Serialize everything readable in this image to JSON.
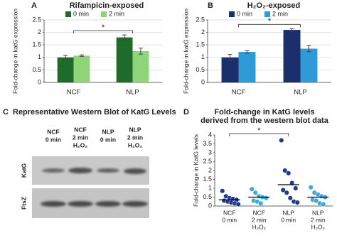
{
  "chart_data": [
    {
      "type": "bar",
      "panel_label": "A",
      "title": "Rifampicin-exposed",
      "y_label": "Fold-change in katG expression",
      "categories": [
        "NCF",
        "NLP"
      ],
      "series": [
        {
          "name": "0 min",
          "color": "#1e6b2a",
          "values": [
            1.0,
            1.8
          ],
          "errors": [
            0.08,
            0.1
          ]
        },
        {
          "name": "2 min",
          "color": "#90d47a",
          "values": [
            1.07,
            1.25
          ],
          "errors": [
            0.03,
            0.12
          ]
        }
      ],
      "ylim": [
        0,
        2.5
      ],
      "yticks": [
        0,
        0.5,
        1,
        1.5,
        2,
        2.5
      ],
      "grid": true,
      "legend": "top",
      "annotation": "*",
      "bracket": [
        0,
        1
      ]
    },
    {
      "type": "bar",
      "panel_label": "B",
      "title": "H₂O₂-exposed",
      "y_label": "Fold-change in katG expression",
      "categories": [
        "NCF",
        "NLP"
      ],
      "series": [
        {
          "name": "0 min",
          "color": "#1a2f6b",
          "values": [
            1.0,
            2.1
          ],
          "errors": [
            0.12,
            0.05
          ]
        },
        {
          "name": "2 min",
          "color": "#2e9bd6",
          "values": [
            1.22,
            1.35
          ],
          "errors": [
            0.05,
            0.12
          ]
        }
      ],
      "ylim": [
        0,
        2.5
      ],
      "yticks": [
        0,
        0.5,
        1,
        1.5,
        2,
        2.5
      ],
      "grid": true,
      "legend": "top",
      "annotation": "*",
      "bracket": [
        0,
        1
      ]
    },
    {
      "type": "strip",
      "panel_label": "D",
      "title": [
        "Fold-change in KatG levels",
        "derived from the western blot data"
      ],
      "y_label": "Fold-change in KatG levels",
      "categories": [
        [
          "NCF",
          "0 min"
        ],
        [
          "NCF",
          "2 min",
          "H₂O₂"
        ],
        [
          "NLP",
          "0 min"
        ],
        [
          "NLP",
          "2 min",
          "H₂O₂"
        ]
      ],
      "groups": [
        {
          "color": "#1f3b8f",
          "values": [
            0.85,
            0.55,
            0.45,
            0.4,
            0.35,
            0.3,
            0.25,
            0.2,
            0.15,
            0.1
          ]
        },
        {
          "color": "#3fa9dc",
          "values": [
            0.95,
            0.75,
            0.55,
            0.5,
            0.45,
            0.3,
            0.25,
            0.15
          ]
        },
        {
          "color": "#1f3b8f",
          "values": [
            3.7,
            2.0,
            1.85,
            1.3,
            1.0,
            0.9,
            0.75,
            0.45,
            0.25,
            0.2
          ]
        },
        {
          "color": "#3fa9dc",
          "values": [
            1.05,
            0.75,
            0.65,
            0.55,
            0.5,
            0.35,
            0.3,
            0.15,
            0.1
          ]
        }
      ],
      "means": [
        0.35,
        0.5,
        1.2,
        0.5
      ],
      "ylim": [
        0,
        4
      ],
      "yticks": [
        0,
        0.5,
        1,
        1.5,
        2,
        2.5,
        3,
        3.5,
        4
      ],
      "grid": false,
      "annotation": "*",
      "bracket": [
        0,
        2
      ]
    }
  ],
  "western_blot": {
    "panel_label": "C",
    "title": "Representative Western Blot of KatG Levels",
    "lanes": [
      [
        "NCF",
        "0 min"
      ],
      [
        "NCF",
        "2 min",
        "H₂O₂"
      ],
      [
        "NLP",
        "0 min"
      ],
      [
        "NLP",
        "2 min",
        "H₂O₂"
      ]
    ],
    "rows": [
      "KatG",
      "FtsZ"
    ]
  }
}
